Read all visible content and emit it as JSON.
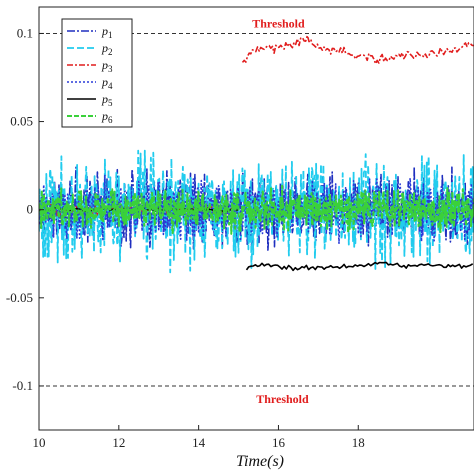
{
  "chart_data": {
    "type": "line",
    "title": "",
    "xlabel": "Time(s)",
    "ylabel": "",
    "xlim": [
      10,
      20.9
    ],
    "ylim": [
      -0.125,
      0.115
    ],
    "xticks": [
      "10",
      "12",
      "14",
      "16",
      "18"
    ],
    "yticks": [
      "0.1",
      "0.05",
      "0",
      "-0.05",
      "-0.1"
    ],
    "grid": false,
    "legend_position": "top-left",
    "thresholds": [
      {
        "label": "Threshold",
        "value": 0.1,
        "label_x": 16.0,
        "color": "#e11d1d"
      },
      {
        "label": "Threshold",
        "value": -0.1,
        "label_x": 16.1,
        "color": "#e11d1d"
      }
    ],
    "series": [
      {
        "name": "p1",
        "color": "#1f2fbf",
        "dash": "8 2 2 2",
        "width": 1.6,
        "noise_amp": 0.018,
        "freq": 9,
        "segments": [
          {
            "x": [
              10,
              15.05
            ],
            "base": 0
          },
          {
            "x": [
              15.05,
              20.9
            ],
            "base": 0
          }
        ]
      },
      {
        "name": "p2",
        "color": "#22ccee",
        "dash": "7 3",
        "width": 1.8,
        "noise_amp": 0.026,
        "freq": 11,
        "segments": [
          {
            "x": [
              10,
              15.05
            ],
            "base": 0
          },
          {
            "x": [
              15.05,
              20.9
            ],
            "base": 0
          }
        ]
      },
      {
        "name": "p3",
        "color": "#e11d1d",
        "dash": "6 2 2 2",
        "width": 1.6,
        "noise_amp": 0.0025,
        "freq": 4,
        "segments": [
          {
            "x": [
              10,
              15.05
            ],
            "base": 0
          },
          {
            "x": [
              15.1,
              20.9
            ],
            "base_points": [
              [
                15.1,
                0.082
              ],
              [
                15.3,
                0.088
              ],
              [
                15.8,
                0.091
              ],
              [
                16.3,
                0.094
              ],
              [
                16.7,
                0.097
              ],
              [
                17.0,
                0.093
              ],
              [
                17.5,
                0.09
              ],
              [
                18.0,
                0.087
              ],
              [
                18.6,
                0.085
              ],
              [
                19.2,
                0.087
              ],
              [
                19.8,
                0.088
              ],
              [
                20.3,
                0.09
              ],
              [
                20.9,
                0.094
              ]
            ]
          }
        ]
      },
      {
        "name": "p4",
        "color": "#2a3bd8",
        "dash": "2 2",
        "width": 1.6,
        "noise_amp": 0.014,
        "freq": 10,
        "segments": [
          {
            "x": [
              10,
              15.05
            ],
            "base": 0
          },
          {
            "x": [
              15.05,
              20.9
            ],
            "base": 0
          }
        ]
      },
      {
        "name": "p5",
        "color": "#000000",
        "dash": "",
        "width": 1.6,
        "noise_amp": 0.0012,
        "freq": 3,
        "segments": [
          {
            "x": [
              10,
              15.05
            ],
            "base": 0
          },
          {
            "x": [
              15.2,
              20.9
            ],
            "base_points": [
              [
                15.2,
                -0.033
              ],
              [
                15.6,
                -0.031
              ],
              [
                16.2,
                -0.033
              ],
              [
                16.8,
                -0.033
              ],
              [
                17.4,
                -0.032
              ],
              [
                18.0,
                -0.032
              ],
              [
                18.6,
                -0.03
              ],
              [
                19.2,
                -0.032
              ],
              [
                19.8,
                -0.031
              ],
              [
                20.4,
                -0.032
              ],
              [
                20.9,
                -0.031
              ]
            ]
          }
        ]
      },
      {
        "name": "p6",
        "color": "#3ad13a",
        "dash": "5 2",
        "width": 2.0,
        "noise_amp": 0.01,
        "freq": 12,
        "segments": [
          {
            "x": [
              10,
              15.05
            ],
            "base": 0
          },
          {
            "x": [
              15.05,
              20.9
            ],
            "base": 0
          }
        ]
      }
    ]
  }
}
